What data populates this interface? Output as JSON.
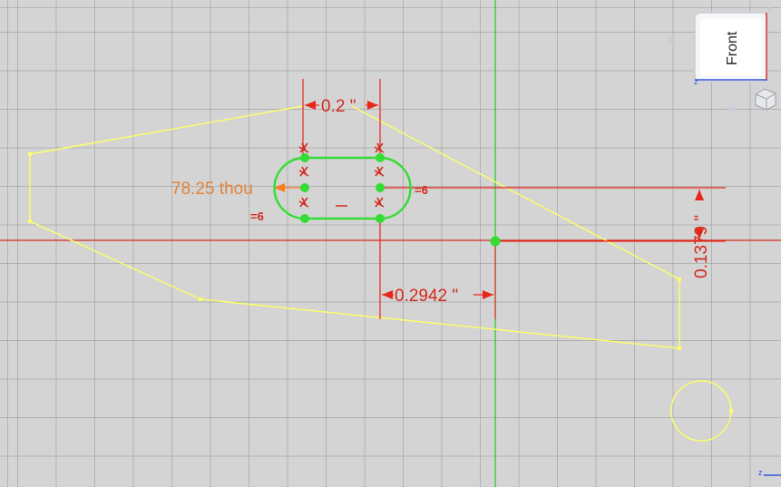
{
  "dimensions": {
    "top_width": "0.2 \"",
    "radius": "78.25 thou",
    "horizontal_offset": "0.2942 \"",
    "vertical_offset": "0.1379 \""
  },
  "constraints": {
    "equal_left": "=6",
    "equal_right": "=6"
  },
  "navigation_cube": {
    "face_label": "Front",
    "axis_label": "z"
  },
  "colors": {
    "background": "#d4d4d4",
    "sketch_geometry": "#ffff66",
    "slot_geometry": "#33dd33",
    "dimension": "#d42a1e",
    "radius_dimension": "#e0843c",
    "axis_vertical": "#22cc22",
    "axis_horizontal": "#d42a1e"
  }
}
